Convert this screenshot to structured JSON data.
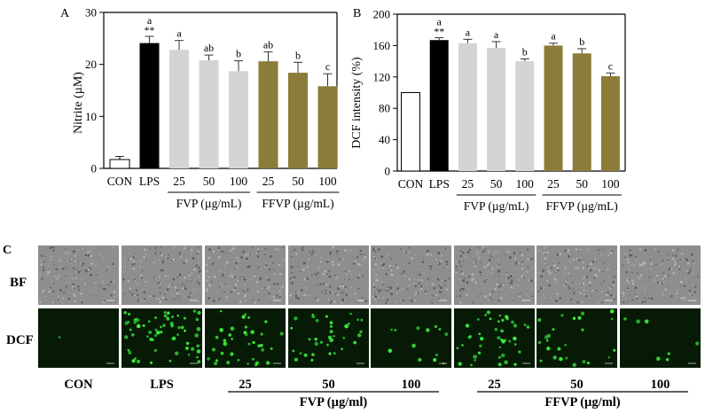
{
  "panel_letters": {
    "a": "A",
    "b": "B",
    "c": "C"
  },
  "colors": {
    "con": "#ffffff",
    "lps": "#000000",
    "fvp": "#d4d4d4",
    "ffvp": "#8b7c3a",
    "micro_bf": "#8e8e8e",
    "micro_dcf": "#061a06",
    "cell_green": "#3ef23e"
  },
  "chart_data": [
    {
      "type": "bar",
      "panel": "A",
      "categories": [
        "CON",
        "LPS",
        "25",
        "50",
        "100",
        "25",
        "50",
        "100"
      ],
      "values": [
        1.7,
        24.1,
        22.8,
        20.8,
        18.7,
        20.6,
        18.4,
        15.8
      ],
      "errors": [
        0.6,
        1.3,
        1.8,
        1.0,
        2.0,
        1.8,
        2.0,
        2.4
      ],
      "labels": [
        "",
        "a",
        "a",
        "ab",
        "b",
        "ab",
        "b",
        "c"
      ],
      "stars": [
        "",
        "**",
        "",
        "",
        "",
        "",
        "",
        ""
      ],
      "ylabel": "Nitrite (µM)",
      "ylim": [
        0,
        30
      ],
      "yticks": [
        "0",
        "10",
        "20",
        "30"
      ],
      "groups": [
        {
          "label": "FVP (µg/mL)",
          "from": 2,
          "to": 4
        },
        {
          "label": "FFVP (µg/mL)",
          "from": 5,
          "to": 7
        }
      ],
      "grid": false,
      "legend": "none"
    },
    {
      "type": "bar",
      "panel": "B",
      "categories": [
        "CON",
        "LPS",
        "25",
        "50",
        "100",
        "25",
        "50",
        "100"
      ],
      "values": [
        100,
        167,
        163,
        157,
        140,
        160,
        150,
        121
      ],
      "errors": [
        0,
        3,
        5,
        8,
        3,
        3,
        6,
        4
      ],
      "labels": [
        "",
        "a",
        "a",
        "a",
        "b",
        "a",
        "b",
        "c"
      ],
      "stars": [
        "",
        "**",
        "",
        "",
        "",
        "",
        "",
        ""
      ],
      "ylabel": "DCF intensity (%)",
      "ylim": [
        0,
        200
      ],
      "yticks": [
        "0",
        "40",
        "80",
        "120",
        "160",
        "200"
      ],
      "groups": [
        {
          "label": "FVP (µg/mL)",
          "from": 2,
          "to": 4
        },
        {
          "label": "FFVP (µg/mL)",
          "from": 5,
          "to": 7
        }
      ],
      "grid": false,
      "legend": "none"
    }
  ],
  "micrographs": {
    "row_labels": [
      "BF",
      "DCF"
    ],
    "column_labels": [
      "CON",
      "LPS",
      "25",
      "50",
      "100",
      "25",
      "50",
      "100"
    ],
    "groups": [
      {
        "label": "FVP (µg/ml)",
        "from": 2,
        "to": 4
      },
      {
        "label": "FFVP (µg/ml)",
        "from": 5,
        "to": 7
      }
    ],
    "dcf_cell_density": [
      0.02,
      0.9,
      0.55,
      0.5,
      0.18,
      0.6,
      0.35,
      0.1
    ]
  }
}
